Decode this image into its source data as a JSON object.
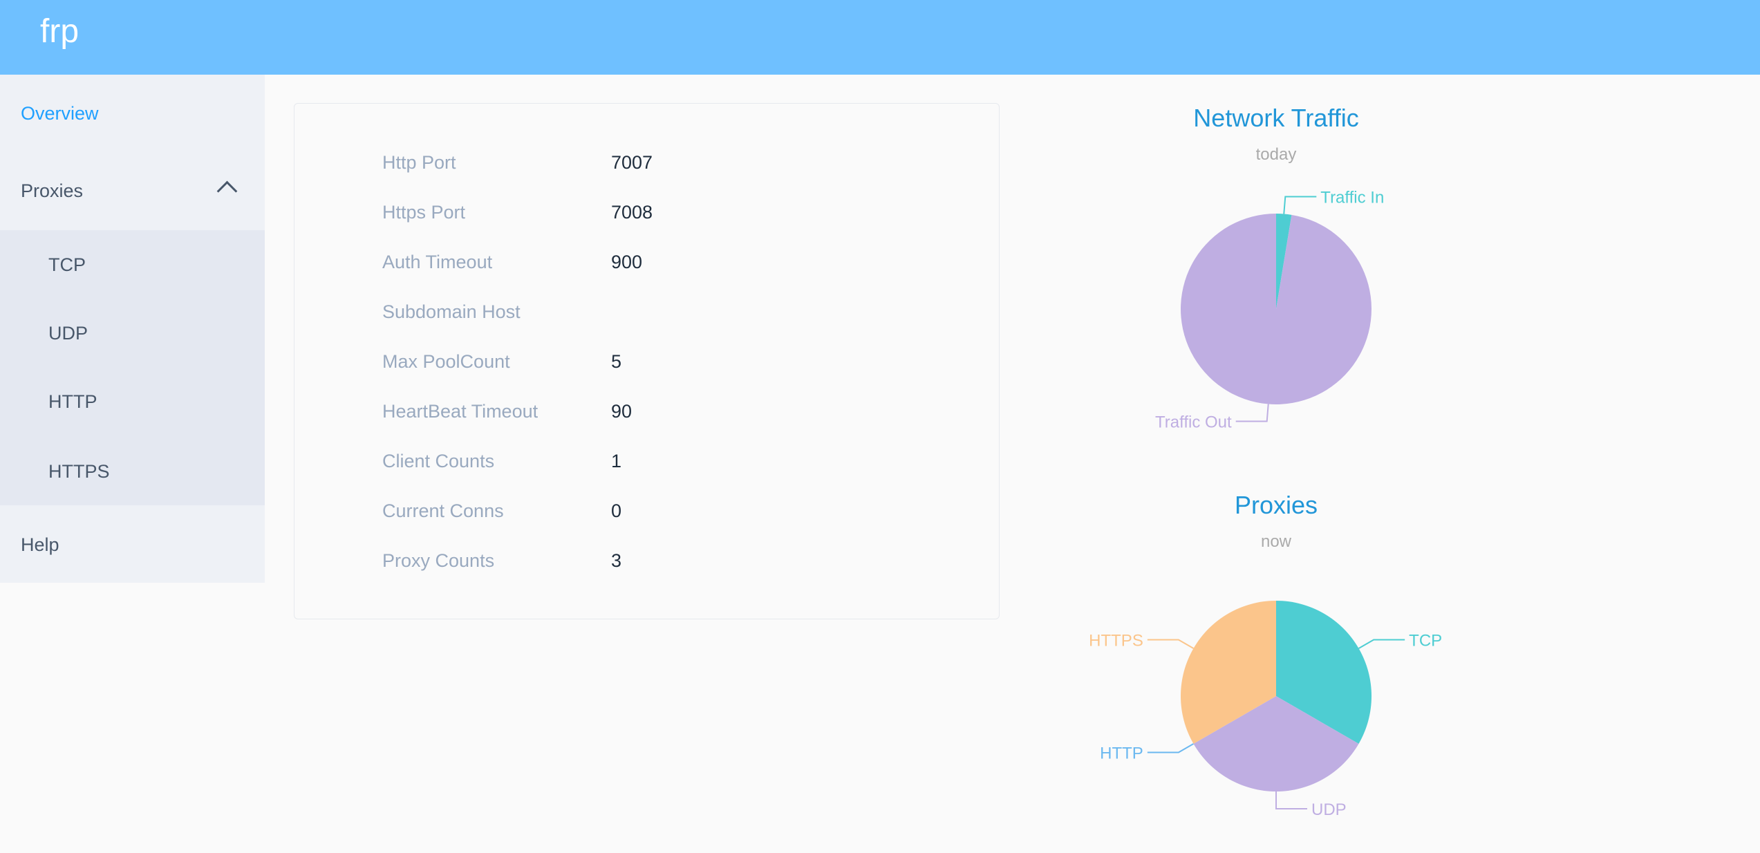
{
  "header": {
    "brand": "frp"
  },
  "sidebar": {
    "overview": "Overview",
    "proxies": "Proxies",
    "sub": [
      "TCP",
      "UDP",
      "HTTP",
      "HTTPS"
    ],
    "help": "Help",
    "active_color": "#20a0ff"
  },
  "server_info": [
    {
      "label": "Http Port",
      "value": "7007"
    },
    {
      "label": "Https Port",
      "value": "7008"
    },
    {
      "label": "Auth Timeout",
      "value": "900"
    },
    {
      "label": "Subdomain Host",
      "value": ""
    },
    {
      "label": "Max PoolCount",
      "value": "5"
    },
    {
      "label": "HeartBeat Timeout",
      "value": "90"
    },
    {
      "label": "Client Counts",
      "value": "1"
    },
    {
      "label": "Current Conns",
      "value": "0"
    },
    {
      "label": "Proxy Counts",
      "value": "3"
    }
  ],
  "chart_data": [
    {
      "type": "pie",
      "title": "Network Traffic",
      "subtitle": "today",
      "series": [
        {
          "name": "Traffic In",
          "value": 2.6,
          "color": "#4ecdd2"
        },
        {
          "name": "Traffic Out",
          "value": 97.4,
          "color": "#bfaee2"
        }
      ]
    },
    {
      "type": "pie",
      "title": "Proxies",
      "subtitle": "now",
      "series": [
        {
          "name": "TCP",
          "value": 1,
          "color": "#4ecdd2"
        },
        {
          "name": "UDP",
          "value": 1,
          "color": "#bfaee2"
        },
        {
          "name": "HTTP",
          "value": 0,
          "color": "#6bb8f0"
        },
        {
          "name": "HTTPS",
          "value": 1,
          "color": "#fbc58b"
        }
      ]
    }
  ]
}
